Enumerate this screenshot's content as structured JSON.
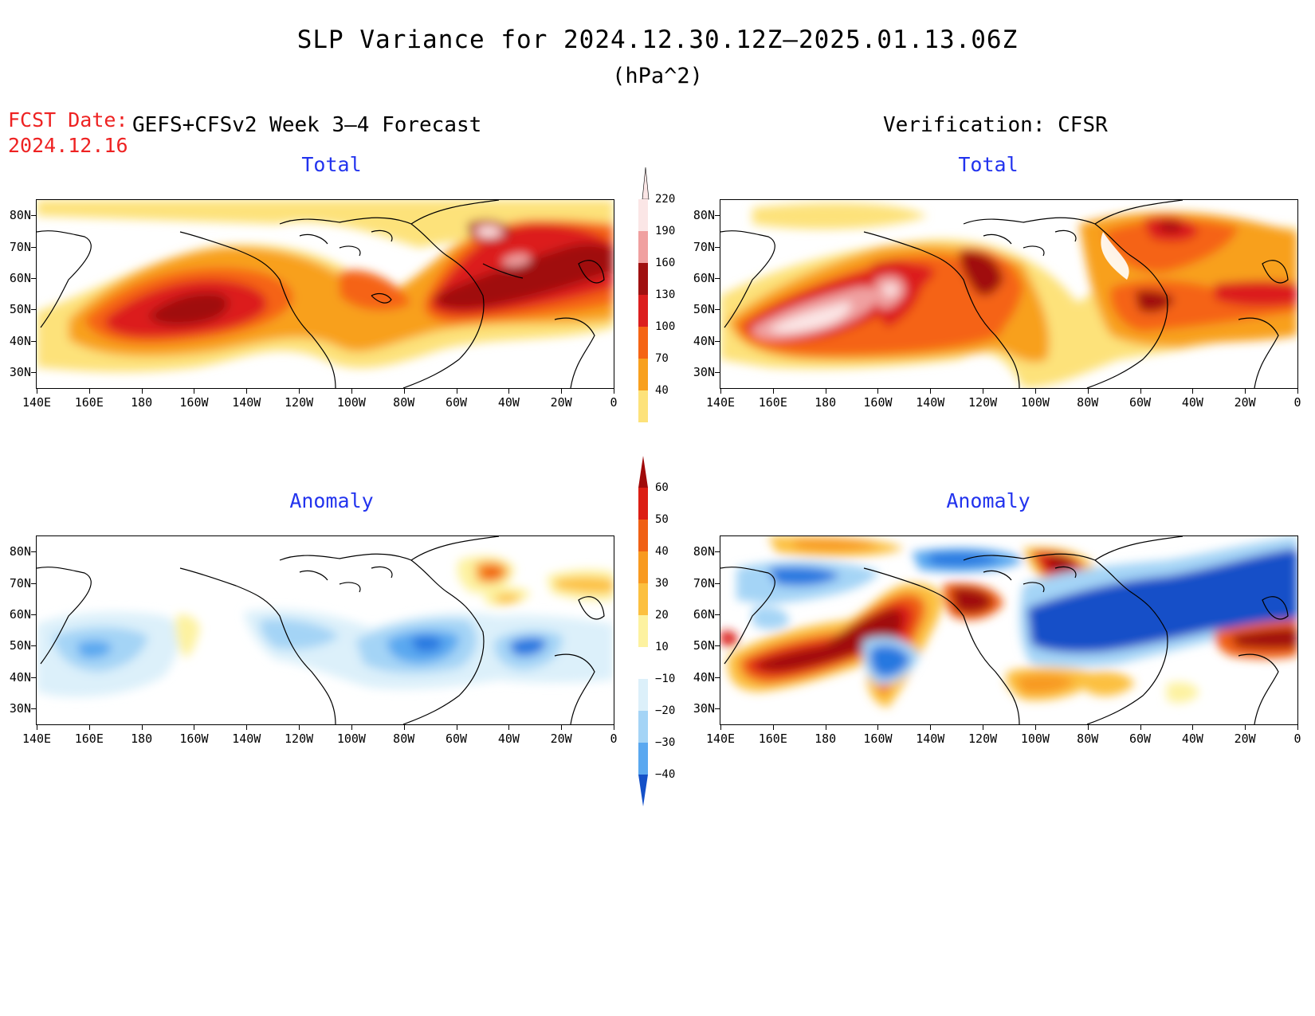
{
  "header": {
    "title": "SLP Variance for 2024.12.30.12Z–2025.01.13.06Z",
    "units": "(hPa^2)",
    "fcst_label": "FCST Date:",
    "fcst_date": "2024.12.16",
    "left_subtitle": "GEFS+CFSv2 Week 3–4 Forecast",
    "right_subtitle": "Verification: CFSR"
  },
  "panels": {
    "top_left_title": "Total",
    "top_right_title": "Total",
    "bottom_left_title": "Anomaly",
    "bottom_right_title": "Anomaly"
  },
  "axes": {
    "lat_labels": [
      "80N",
      "70N",
      "60N",
      "50N",
      "40N",
      "30N"
    ],
    "lon_labels": [
      "140E",
      "160E",
      "180",
      "160W",
      "140W",
      "120W",
      "100W",
      "80W",
      "60W",
      "40W",
      "20W",
      "0"
    ]
  },
  "colorbars": {
    "total": {
      "levels": [
        "220",
        "190",
        "160",
        "130",
        "100",
        "70",
        "40"
      ],
      "colors": [
        "#fbe6e6",
        "#f0a0a0",
        "#a01010",
        "#dc1e1e",
        "#f56414",
        "#f8a01e",
        "#fde27a"
      ]
    },
    "anomaly": {
      "levels": [
        "60",
        "50",
        "40",
        "30",
        "20",
        "10",
        "−10",
        "−20",
        "−30",
        "−40"
      ],
      "colors": [
        "#a00a0a",
        "#dc1e14",
        "#f06014",
        "#f89a20",
        "#fcc040",
        "#fdf2a0",
        "#ffffff",
        "#dcf0fa",
        "#a4d4f6",
        "#5aa8f0",
        "#2878e0",
        "#1450c8"
      ]
    }
  }
}
